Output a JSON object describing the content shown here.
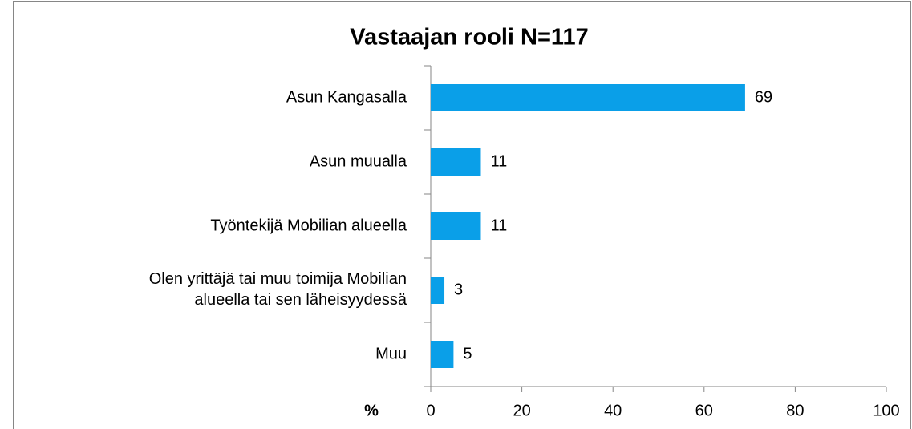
{
  "chart_data": {
    "type": "bar",
    "orientation": "horizontal",
    "title": "Vastaajan rooli N=117",
    "xlabel": "%",
    "categories": [
      "Asun Kangasalla",
      "Asun muualla",
      "Työntekijä Mobilian alueella",
      "Olen yrittäjä tai muu toimija Mobilian\nalueella tai sen läheisyydessä",
      "Muu"
    ],
    "values": [
      69,
      11,
      11,
      3,
      5
    ],
    "color": "#0a9fe8",
    "xlim": [
      0,
      100
    ],
    "xticks": [
      0,
      20,
      40,
      60,
      80,
      100
    ],
    "grid": false
  }
}
